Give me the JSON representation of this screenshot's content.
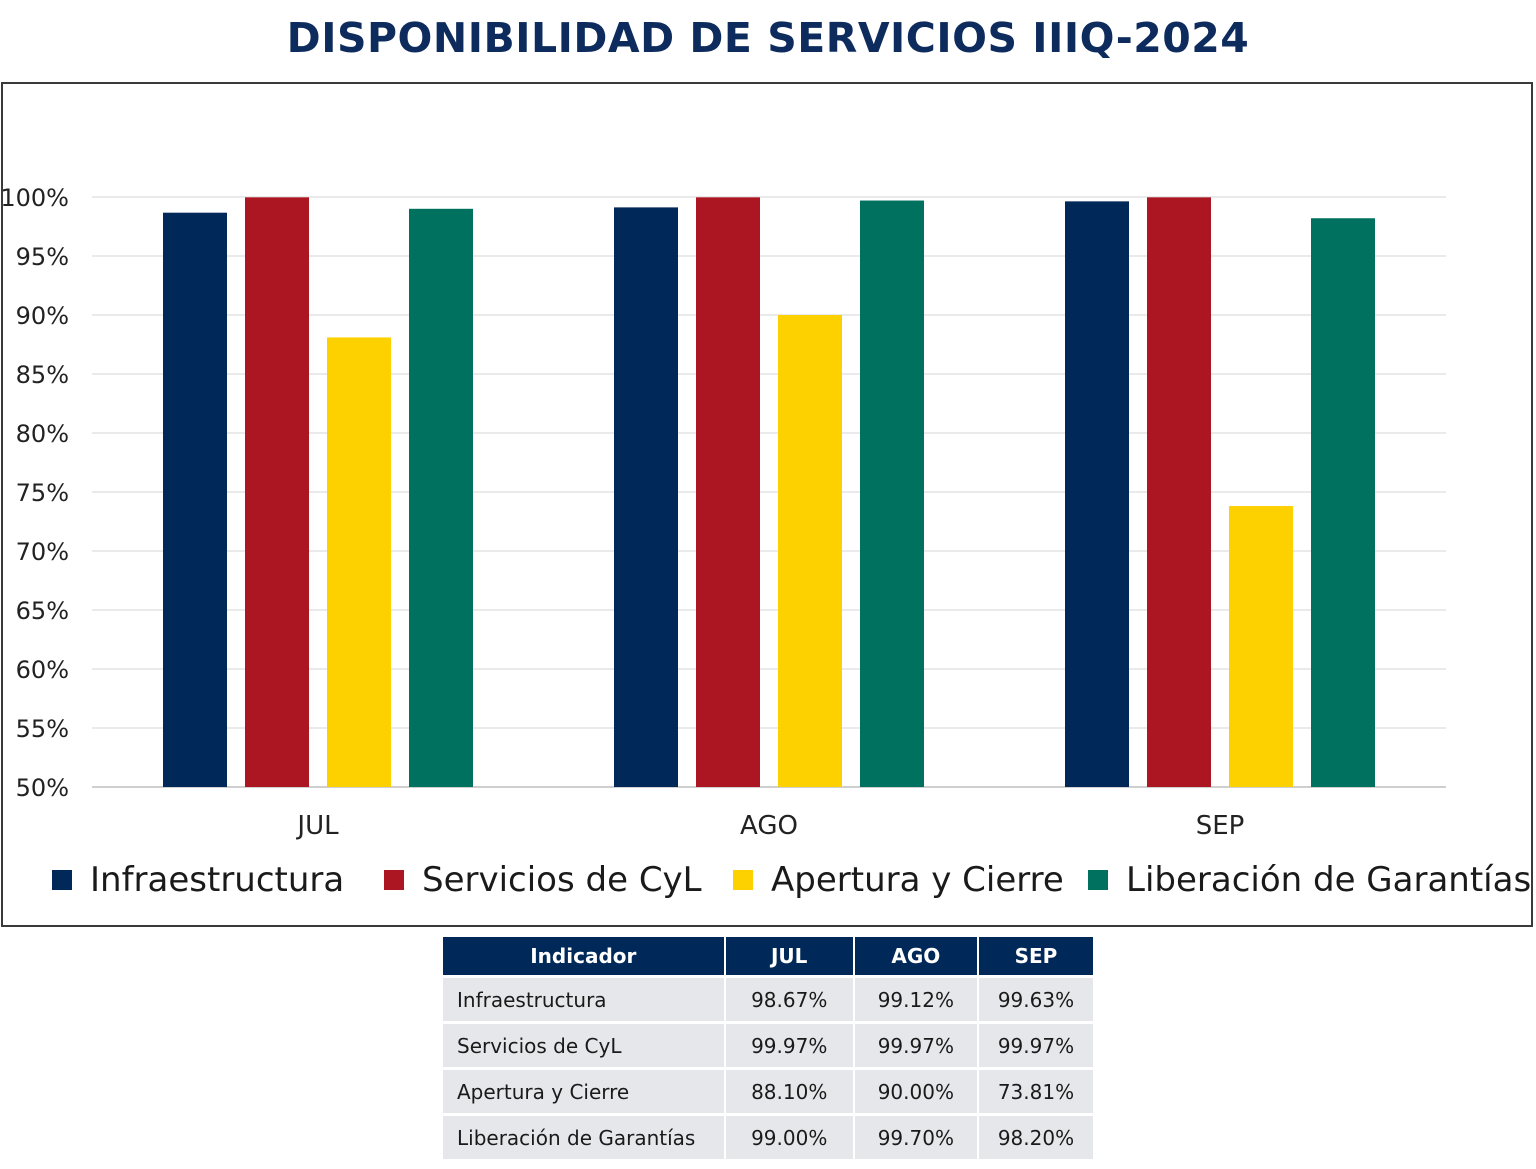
{
  "header": {
    "title": "DISPONIBILIDAD DE SERVICIOS IIIQ-2024"
  },
  "colors": {
    "title": "#0d2b5c",
    "infraestructura": "#002858",
    "servicios": "#ac1622",
    "apertura": "#fdd000",
    "liberacion": "#00705f",
    "grid": "#dddddd",
    "table_header": "#002858",
    "table_cell": "#e5e7ea"
  },
  "chart_data": {
    "type": "bar",
    "title": "DISPONIBILIDAD DE SERVICIOS IIIQ-2024",
    "categories": [
      "JUL",
      "AGO",
      "SEP"
    ],
    "series": [
      {
        "name": "Infraestructura",
        "values": [
          98.67,
          99.12,
          99.63
        ],
        "color": "#002858"
      },
      {
        "name": "Servicios de CyL",
        "values": [
          99.97,
          99.97,
          99.97
        ],
        "color": "#ac1622"
      },
      {
        "name": "Apertura y Cierre",
        "values": [
          88.1,
          90.0,
          73.81
        ],
        "color": "#fdd000"
      },
      {
        "name": "Liberación de Garantías",
        "values": [
          99.0,
          99.7,
          98.2
        ],
        "color": "#00705f"
      }
    ],
    "ylim": [
      50,
      100
    ],
    "ytick_labels": [
      "50%",
      "55%",
      "60%",
      "65%",
      "70%",
      "75%",
      "80%",
      "85%",
      "90%",
      "95%",
      "100%"
    ],
    "yticks": [
      50,
      55,
      60,
      65,
      70,
      75,
      80,
      85,
      90,
      95,
      100
    ],
    "grid": true,
    "legend_position": "bottom"
  },
  "table": {
    "headers": [
      "Indicador",
      "JUL",
      "AGO",
      "SEP"
    ],
    "rows": [
      [
        "Infraestructura",
        "98.67%",
        "99.12%",
        "99.63%"
      ],
      [
        "Servicios de CyL",
        "99.97%",
        "99.97%",
        "99.97%"
      ],
      [
        "Apertura y Cierre",
        "88.10%",
        "90.00%",
        "73.81%"
      ],
      [
        "Liberación de Garantías",
        "99.00%",
        "99.70%",
        "98.20%"
      ]
    ]
  }
}
